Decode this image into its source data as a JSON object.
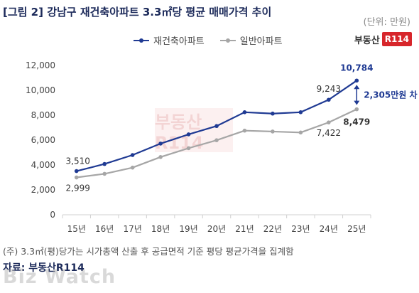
{
  "title": "[그림 2] 강남구 재건축아파트 3.3㎡당 평균 매매가격 추이",
  "unit": "(단위: 만원)",
  "brand": {
    "text": "부동산",
    "badge": "R114"
  },
  "watermark_center": "부동산R114",
  "note": "(주) 3.3㎡(평)당가는 시가총액 산출 후 공급면적 기준 평당 평균가격을 집계함",
  "source": "자료: 부동산R114",
  "watermark": "Biz Watch",
  "colors": {
    "series1": "#1f3a93",
    "series2": "#a6a6a6",
    "axis": "#d0d0d0",
    "annot": "#1f3a93"
  },
  "chart_data": {
    "type": "line",
    "categories": [
      "15년",
      "16년",
      "17년",
      "18년",
      "19년",
      "20년",
      "21년",
      "22년",
      "23년",
      "24년",
      "25년"
    ],
    "series": [
      {
        "name": "재건축아파트",
        "values": [
          3510,
          4080,
          4800,
          5720,
          6460,
          7130,
          8240,
          8130,
          8240,
          9243,
          10784
        ]
      },
      {
        "name": "일반아파트",
        "values": [
          2999,
          3290,
          3790,
          4640,
          5350,
          5990,
          6760,
          6690,
          6610,
          7422,
          8479
        ]
      }
    ],
    "data_labels": [
      {
        "series": 0,
        "index": 0,
        "text": "3,510"
      },
      {
        "series": 0,
        "index": 9,
        "text": "9,243"
      },
      {
        "series": 0,
        "index": 10,
        "text": "10,784"
      },
      {
        "series": 1,
        "index": 0,
        "text": "2,999"
      },
      {
        "series": 1,
        "index": 9,
        "text": "7,422"
      },
      {
        "series": 1,
        "index": 10,
        "text": "8,479"
      }
    ],
    "annotation": "2,305만원 차",
    "yticks": [
      "0",
      "2,000",
      "4,000",
      "6,000",
      "8,000",
      "10,000",
      "12,000"
    ],
    "ylim": [
      0,
      12000
    ],
    "grid": false,
    "legend_position": "top"
  }
}
